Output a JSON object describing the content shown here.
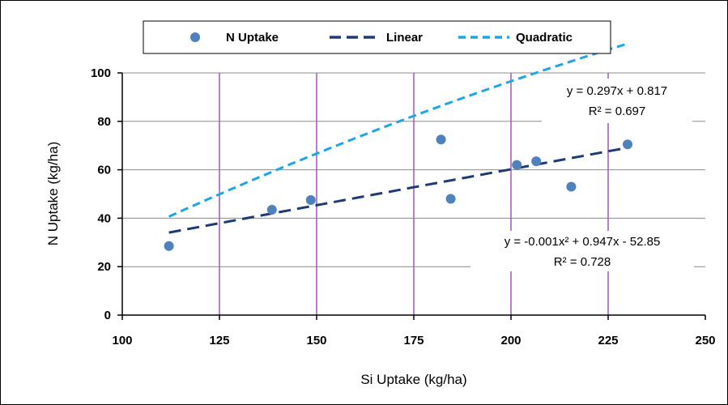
{
  "chart_data": {
    "type": "scatter",
    "xlabel": "Si Uptake (kg/ha)",
    "ylabel": "N Uptake (kg/ha)",
    "xlim": [
      100,
      250
    ],
    "ylim": [
      0,
      100
    ],
    "x_ticks": [
      100,
      125,
      150,
      175,
      200,
      225,
      250
    ],
    "y_ticks": [
      0,
      20,
      40,
      60,
      80,
      100
    ],
    "x_tick_labels": [
      "100",
      "125",
      "150",
      "175",
      "200",
      "225",
      "250"
    ],
    "y_tick_labels": [
      "0",
      "20",
      "40",
      "60",
      "80",
      "100"
    ],
    "vertical_gridlines": [
      125,
      150,
      175,
      200,
      225
    ],
    "horizontal_gridlines": [
      20,
      40,
      60,
      80,
      100
    ],
    "legend_position": "top",
    "series": [
      {
        "name": "N Uptake",
        "kind": "points",
        "color": "#4f81bd",
        "x": [
          112,
          138.5,
          148.5,
          182,
          184.5,
          201.5,
          206.5,
          215.5,
          230
        ],
        "y": [
          28.5,
          43.5,
          47.5,
          72.5,
          48,
          62,
          63.5,
          53,
          70.5
        ]
      },
      {
        "name": "Linear",
        "kind": "trendline",
        "color": "#1f3b73",
        "coefficients": {
          "a": 0,
          "b": 0.297,
          "c": 0.817
        },
        "x_range": [
          112,
          230
        ]
      },
      {
        "name": "Quadratic",
        "kind": "trendline",
        "color": "#1ea5e6",
        "coefficients": {
          "a": -0.001,
          "b": 0.947,
          "c": -52.85
        },
        "x_range": [
          112,
          230
        ]
      }
    ],
    "annotations": {
      "linear_equation": "y = 0.297x + 0.817",
      "linear_r2": "R² = 0.697",
      "quadratic_equation": "y = -0.001x² + 0.947x - 52.85",
      "quadratic_r2": "R² = 0.728"
    }
  }
}
